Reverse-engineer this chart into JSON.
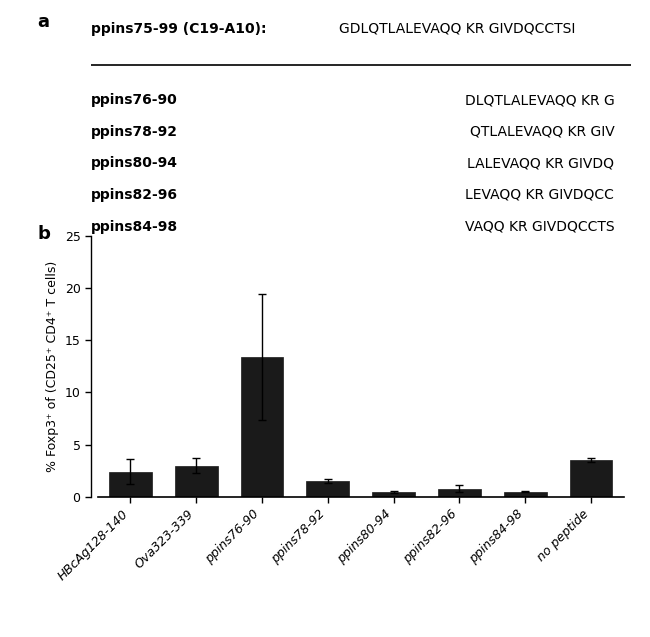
{
  "panel_a_title": "ppins75-99 (C19-A10):",
  "panel_a_title_seq": "GDLQTLALEVAQQ KR GIVDQCCTSI",
  "panel_a_rows": [
    {
      "label": "ppins76-90",
      "seq": "DLQTLALEVAQQ KR G"
    },
    {
      "label": "ppins78-92",
      "seq": "QTLALEVAQQ KR GIV"
    },
    {
      "label": "ppins80-94",
      "seq": "LALEVAQQ KR GIVDQ"
    },
    {
      "label": "ppins82-96",
      "seq": "LEVAQQ KR GIVDQCC"
    },
    {
      "label": "ppins84-98",
      "seq": "VAQQ KR GIVDQCCTS"
    }
  ],
  "bar_categories": [
    "HBcAg128-140",
    "Ova323-339",
    "ppins76-90",
    "ppins78-92",
    "ppins80-94",
    "ppins82-96",
    "ppins84-98",
    "no peptide"
  ],
  "bar_values": [
    2.4,
    3.0,
    13.4,
    1.5,
    0.5,
    0.8,
    0.5,
    3.5
  ],
  "bar_errors": [
    1.2,
    0.7,
    6.0,
    0.2,
    0.1,
    0.3,
    0.08,
    0.2
  ],
  "bar_color": "#1a1a1a",
  "ylabel": "% Foxp3⁺ of (CD25⁺ CD4⁺ T cells)",
  "ylim": [
    0,
    25
  ],
  "yticks": [
    0,
    5,
    10,
    15,
    20,
    25
  ],
  "background_color": "#ffffff",
  "label_a": "a",
  "label_b": "b"
}
